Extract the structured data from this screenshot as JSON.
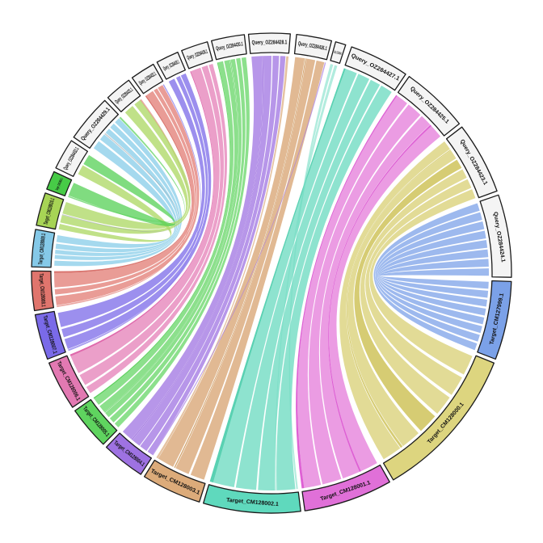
{
  "figure": {
    "kind": "circos-synteny-plot",
    "background": "#ffffff",
    "query_box_fill": "#f4f4f4",
    "box_border": "#1a1a1a"
  },
  "chart_data": {
    "type": "chord",
    "title": "",
    "center": [
      336,
      338
    ],
    "ring_outer_radius": 297,
    "ring_inner_radius": 273,
    "chord_radius": 269,
    "segments": [
      {
        "id": "q428",
        "label": "Query_OZ284428.1",
        "start": 354.5,
        "end": 364.5,
        "type": "query",
        "color": "#f4f4f4"
      },
      {
        "id": "q426",
        "label": "Query_OZ284426.1",
        "start": 6,
        "end": 14.5,
        "type": "query",
        "color": "#f4f4f4"
      },
      {
        "id": "q434",
        "label": "Query_OZ284434.1",
        "start": 15.5,
        "end": 18,
        "type": "query",
        "color": "#f4f4f4"
      },
      {
        "id": "q427",
        "label": "Query_OZ284427.1",
        "start": 19.5,
        "end": 34,
        "type": "query",
        "color": "#f4f4f4"
      },
      {
        "id": "q425",
        "label": "Query_OZ284425.1",
        "start": 35,
        "end": 51.5,
        "type": "query",
        "color": "#f4f4f4"
      },
      {
        "id": "q423",
        "label": "Query_OZ284423.1",
        "start": 52.5,
        "end": 70,
        "type": "query",
        "color": "#f4f4f4"
      },
      {
        "id": "q424",
        "label": "Query_OZ284424.1",
        "start": 71,
        "end": 91,
        "type": "query",
        "color": "#f4f4f4"
      },
      {
        "id": "t7999",
        "label": "Target_CM127999.1",
        "start": 92,
        "end": 111,
        "type": "target",
        "color": "#7ba1e8"
      },
      {
        "id": "t8000",
        "label": "Target_CM128000.1",
        "start": 112,
        "end": 149.5,
        "type": "target",
        "color": "#ddd57f"
      },
      {
        "id": "t8001",
        "label": "Target_CM128001.1",
        "start": 150.5,
        "end": 172,
        "type": "target",
        "color": "#e070d8"
      },
      {
        "id": "t8002",
        "label": "Target_CM128002.1",
        "start": 173,
        "end": 196.5,
        "type": "target",
        "color": "#5fd9bd"
      },
      {
        "id": "t8003",
        "label": "Target_CM128003.1",
        "start": 197.5,
        "end": 212,
        "type": "target",
        "color": "#dcab7a"
      },
      {
        "id": "t8004",
        "label": "Target_CM128004.1",
        "start": 213,
        "end": 223.5,
        "type": "target",
        "color": "#9e72e2"
      },
      {
        "id": "t8005",
        "label": "Target_CM128005.1",
        "start": 224.5,
        "end": 235,
        "type": "target",
        "color": "#5fd45f"
      },
      {
        "id": "t8006",
        "label": "Target_CM128006.1",
        "start": 236,
        "end": 248,
        "type": "target",
        "color": "#e279b2"
      },
      {
        "id": "t8007",
        "label": "Target_CM128007.1",
        "start": 249,
        "end": 260,
        "type": "target",
        "color": "#7a6ae8"
      },
      {
        "id": "t8008",
        "label": "Target_CM128008.1",
        "start": 261,
        "end": 270.5,
        "type": "target",
        "color": "#e0756d"
      },
      {
        "id": "t8009",
        "label": "Target_CM128009.1",
        "start": 271.5,
        "end": 280.5,
        "type": "target",
        "color": "#85c9e8"
      },
      {
        "id": "t8010",
        "label": "Target_CM128010.1",
        "start": 281.5,
        "end": 289.5,
        "type": "target",
        "color": "#a7d455"
      },
      {
        "id": "t8011",
        "label": "Target_CM128011.1",
        "start": 290.5,
        "end": 295,
        "type": "target",
        "color": "#47cb47"
      },
      {
        "id": "qA",
        "label": "Query_OZ284433.1",
        "start": 296,
        "end": 303.5,
        "type": "query",
        "color": "#f4f4f4"
      },
      {
        "id": "q429",
        "label": "Query_OZ284429.1",
        "start": 304.5,
        "end": 316,
        "type": "query",
        "color": "#f4f4f4"
      },
      {
        "id": "qB",
        "label": "Query_OZ284431.1",
        "start": 317,
        "end": 323.5,
        "type": "query",
        "color": "#f4f4f4"
      },
      {
        "id": "qC",
        "label": "Query_OZ284432.1",
        "start": 324.5,
        "end": 330.5,
        "type": "query",
        "color": "#f4f4f4"
      },
      {
        "id": "qD",
        "label": "Query_OZ284435.1",
        "start": 331.5,
        "end": 337,
        "type": "query",
        "color": "#f4f4f4"
      },
      {
        "id": "qE",
        "label": "Query_OZ284436.1",
        "start": 338,
        "end": 344.5,
        "type": "query",
        "color": "#f4f4f4"
      },
      {
        "id": "q430",
        "label": "Query_OZ284430.1",
        "start": 345.5,
        "end": 353.5,
        "type": "query",
        "color": "#f4f4f4"
      }
    ],
    "chords": [
      [
        "q424",
        "t7999",
        0.012,
        0.115,
        0.89,
        0.987,
        "#84a7ea",
        0.8
      ],
      [
        "q424",
        "t7999",
        0.137,
        0.24,
        0.765,
        0.862,
        "#84a7ea",
        0.8
      ],
      [
        "q424",
        "t7999",
        0.262,
        0.365,
        0.64,
        0.737,
        "#84a7ea",
        0.8
      ],
      [
        "q424",
        "t7999",
        0.387,
        0.49,
        0.515,
        0.612,
        "#84a7ea",
        0.8
      ],
      [
        "q424",
        "t7999",
        0.512,
        0.615,
        0.39,
        0.487,
        "#84a7ea",
        0.8
      ],
      [
        "q424",
        "t7999",
        0.637,
        0.74,
        0.265,
        0.362,
        "#84a7ea",
        0.8
      ],
      [
        "q424",
        "t7999",
        0.762,
        0.865,
        0.14,
        0.237,
        "#84a7ea",
        0.8
      ],
      [
        "q424",
        "t7999",
        0.887,
        0.985,
        0.015,
        0.112,
        "#84a7ea",
        0.8
      ],
      [
        "q423",
        "t8000",
        0.012,
        0.155,
        0.845,
        0.985,
        "#ddd584",
        0.85
      ],
      [
        "q423",
        "t8000",
        0.179,
        0.322,
        0.678,
        0.82,
        "#ddd584",
        0.85
      ],
      [
        "q423",
        "t8000",
        0.345,
        0.488,
        0.512,
        0.655,
        "#cfc35a",
        0.85
      ],
      [
        "q423",
        "t8000",
        0.512,
        0.655,
        0.345,
        0.488,
        "#ddd584",
        0.85
      ],
      [
        "q423",
        "t8000",
        0.679,
        0.822,
        0.179,
        0.322,
        "#ddd584",
        0.85
      ],
      [
        "q423",
        "t8000",
        0.845,
        0.988,
        0.012,
        0.155,
        "#ddd584",
        0.85
      ],
      [
        "q423",
        "t8000",
        0.164,
        0.176,
        0.824,
        0.84,
        "#cfc35a",
        0.85
      ],
      [
        "q425",
        "t8001",
        0.02,
        0.22,
        0.76,
        0.97,
        "#e683dc",
        0.8
      ],
      [
        "q425",
        "t8001",
        0.25,
        0.5,
        0.5,
        0.74,
        "#e683dc",
        0.8
      ],
      [
        "q425",
        "t8001",
        0.53,
        0.72,
        0.26,
        0.48,
        "#e683dc",
        0.8
      ],
      [
        "q425",
        "t8001",
        0.75,
        0.97,
        0.02,
        0.24,
        "#e683dc",
        0.8
      ],
      [
        "q425",
        "t8001",
        0.0,
        0.02,
        0.97,
        1.0,
        "#d844cc",
        0.85
      ],
      [
        "q425",
        "t8001",
        0.725,
        0.75,
        0.24,
        0.26,
        "#d844cc",
        0.85
      ],
      [
        "q427",
        "t8002",
        0.03,
        0.25,
        0.72,
        0.96,
        "#72dcc3",
        0.8
      ],
      [
        "q427",
        "t8002",
        0.28,
        0.5,
        0.47,
        0.7,
        "#72dcc3",
        0.8
      ],
      [
        "q427",
        "t8002",
        0.53,
        0.72,
        0.26,
        0.45,
        "#72dcc3",
        0.8
      ],
      [
        "q427",
        "t8002",
        0.75,
        0.97,
        0.03,
        0.24,
        "#72dcc3",
        0.8
      ],
      [
        "q427",
        "t8002",
        0.0,
        0.03,
        0.96,
        1.0,
        "#3cc9a5",
        0.85
      ],
      [
        "q434",
        "t8002",
        0.1,
        0.4,
        0.0,
        0.02,
        "#72dcc3",
        0.55
      ],
      [
        "q434",
        "t8002",
        0.55,
        0.85,
        0.245,
        0.258,
        "#72dcc3",
        0.55
      ],
      [
        "q426",
        "t8003",
        0.03,
        0.33,
        0.65,
        0.96,
        "#dcad80",
        0.85
      ],
      [
        "q426",
        "t8003",
        0.38,
        0.66,
        0.34,
        0.6,
        "#dcad80",
        0.85
      ],
      [
        "q426",
        "t8003",
        0.7,
        0.95,
        0.04,
        0.3,
        "#dcad80",
        0.85
      ],
      [
        "q426",
        "t8003",
        0.345,
        0.37,
        0.61,
        0.63,
        "#c9904f",
        0.85
      ],
      [
        "q428",
        "t8003",
        0.94,
        1.0,
        0.965,
        1.0,
        "#dcad80",
        0.75
      ],
      [
        "q428",
        "t8004",
        0.02,
        0.3,
        0.68,
        0.97,
        "#a57ce4",
        0.8
      ],
      [
        "q428",
        "t8004",
        0.33,
        0.55,
        0.42,
        0.65,
        "#a57ce4",
        0.8
      ],
      [
        "q428",
        "t8004",
        0.58,
        0.75,
        0.2,
        0.4,
        "#a57ce4",
        0.8
      ],
      [
        "q428",
        "t8004",
        0.78,
        0.92,
        0.03,
        0.17,
        "#a57ce4",
        0.8
      ],
      [
        "q428",
        "t8004",
        0.305,
        0.325,
        0.655,
        0.675,
        "#8a54d8",
        0.85
      ],
      [
        "q426",
        "t8004",
        0.965,
        1.0,
        0.0,
        0.035,
        "#a57ce4",
        0.7
      ],
      [
        "q430",
        "t8005",
        0.02,
        0.2,
        0.78,
        0.97,
        "#6fd86f",
        0.8
      ],
      [
        "q430",
        "t8005",
        0.24,
        0.42,
        0.55,
        0.74,
        "#6fd86f",
        0.8
      ],
      [
        "q430",
        "t8005",
        0.46,
        0.6,
        0.38,
        0.52,
        "#6fd86f",
        0.8
      ],
      [
        "q430",
        "t8005",
        0.64,
        0.78,
        0.2,
        0.34,
        "#6fd86f",
        0.8
      ],
      [
        "q430",
        "t8005",
        0.82,
        0.97,
        0.03,
        0.16,
        "#6fd86f",
        0.8
      ],
      [
        "q430",
        "t8005",
        0.0,
        0.02,
        0.97,
        1.0,
        "#3fc83f",
        0.85
      ],
      [
        "q430",
        "t8005",
        0.43,
        0.45,
        0.53,
        0.545,
        "#3fc83f",
        0.85
      ],
      [
        "qE",
        "t8006",
        0.03,
        0.45,
        0.55,
        0.96,
        "#e687bc",
        0.8
      ],
      [
        "qE",
        "t8006",
        0.5,
        0.75,
        0.25,
        0.5,
        "#e687bc",
        0.8
      ],
      [
        "qE",
        "t8006",
        0.8,
        0.97,
        0.04,
        0.2,
        "#e687bc",
        0.8
      ],
      [
        "qE",
        "t8006",
        0.0,
        0.03,
        0.96,
        1.0,
        "#d94f9e",
        0.85
      ],
      [
        "qD",
        "t8007",
        0.05,
        0.35,
        0.6,
        0.95,
        "#8373ea",
        0.8
      ],
      [
        "qD",
        "t8007",
        0.45,
        0.65,
        0.35,
        0.55,
        "#8373ea",
        0.8
      ],
      [
        "qD",
        "t8007",
        0.7,
        0.95,
        0.05,
        0.3,
        "#8373ea",
        0.8
      ],
      [
        "qC",
        "t8007",
        0.92,
        0.97,
        0.0,
        0.04,
        "#8373ea",
        0.7
      ],
      [
        "qC",
        "t8008",
        0.05,
        0.4,
        0.55,
        0.95,
        "#e3837c",
        0.8
      ],
      [
        "qC",
        "t8008",
        0.45,
        0.62,
        0.35,
        0.5,
        "#e3837c",
        0.8
      ],
      [
        "qC",
        "t8008",
        0.66,
        0.9,
        0.05,
        0.3,
        "#e3837c",
        0.8
      ],
      [
        "qC",
        "t8008",
        0.0,
        0.05,
        0.95,
        1.0,
        "#d05048",
        0.8
      ],
      [
        "qB",
        "t8008",
        0.88,
        0.95,
        0.0,
        0.04,
        "#e3837c",
        0.7
      ],
      [
        "q429",
        "t8009",
        0.05,
        0.25,
        0.75,
        0.95,
        "#8fcfea",
        0.8
      ],
      [
        "q429",
        "t8009",
        0.3,
        0.45,
        0.55,
        0.7,
        "#8fcfea",
        0.8
      ],
      [
        "q429",
        "t8009",
        0.5,
        0.62,
        0.4,
        0.52,
        "#8fcfea",
        0.8
      ],
      [
        "q429",
        "t8009",
        0.66,
        0.78,
        0.25,
        0.37,
        "#8fcfea",
        0.8
      ],
      [
        "q429",
        "t8009",
        0.82,
        0.95,
        0.05,
        0.2,
        "#8fcfea",
        0.8
      ],
      [
        "qB",
        "t8010",
        0.1,
        0.5,
        0.55,
        0.95,
        "#b0d96a",
        0.8
      ],
      [
        "qB",
        "t8010",
        0.6,
        0.9,
        0.25,
        0.5,
        "#b0d96a",
        0.8
      ],
      [
        "qA",
        "t8010",
        0.15,
        0.5,
        0.02,
        0.2,
        "#b0d96a",
        0.8
      ],
      [
        "qA",
        "t8011",
        0.55,
        0.92,
        0.1,
        0.9,
        "#55d055",
        0.75
      ],
      [
        "q429",
        "t8011",
        0.96,
        1.0,
        0.0,
        0.08,
        "#55d055",
        0.7
      ],
      [
        "q429",
        "t8010",
        0.46,
        0.485,
        0.5,
        0.53,
        "#9aa0a6",
        0.55
      ]
    ]
  }
}
